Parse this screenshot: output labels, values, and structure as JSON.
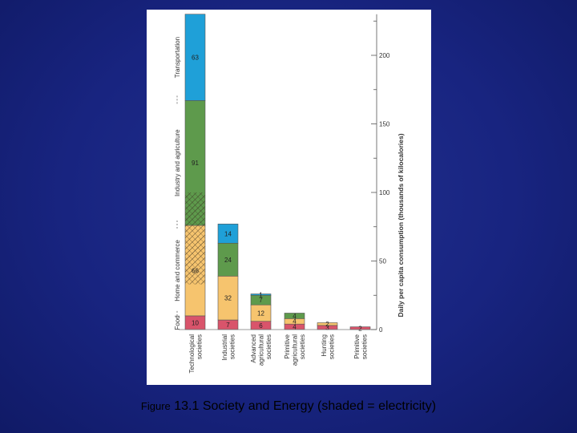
{
  "caption": {
    "prefix": "Figure",
    "main": "13.1 Society and Energy (shaded = electricity)"
  },
  "chart_data": {
    "type": "bar",
    "stacked": true,
    "categories": [
      [
        "Technological",
        "societies"
      ],
      [
        "Industrial",
        "societies"
      ],
      [
        "Advanced",
        "agricultural",
        "societies"
      ],
      [
        "Primitive",
        "agricultural",
        "societies"
      ],
      [
        "Hunting",
        "societies"
      ],
      [
        "Primitive",
        "societies"
      ]
    ],
    "series": [
      {
        "name": "Food",
        "color": "#d9546b",
        "values": [
          10,
          7,
          6,
          4,
          3,
          2
        ]
      },
      {
        "name": "Home and commerce",
        "color": "#f6c46e",
        "values": [
          66,
          32,
          12,
          4,
          2,
          0
        ]
      },
      {
        "name": "Industry and agriculture",
        "color": "#5e9a4c",
        "values": [
          91,
          24,
          7,
          4,
          0,
          0
        ]
      },
      {
        "name": "Transportation",
        "color": "#1fa0d8",
        "values": [
          63,
          14,
          1,
          0,
          0,
          0
        ]
      }
    ],
    "labels": [
      [
        "10",
        "66",
        "91",
        "63"
      ],
      [
        "7",
        "32",
        "24",
        "14"
      ],
      [
        "6",
        "12",
        "7",
        "1"
      ],
      [
        "4",
        "4",
        "4",
        ""
      ],
      [
        "3",
        "2",
        "",
        ""
      ],
      [
        "2",
        "",
        "",
        ""
      ]
    ],
    "electricity_shaded": [
      {
        "bar": 0,
        "from": 33,
        "to": 100
      }
    ],
    "ylabel": "Daily per capita consumption (thousands of kilocalories)",
    "ylim": [
      0,
      230
    ],
    "yticks": [
      0,
      50,
      100,
      150,
      200
    ],
    "grid": false,
    "legend": "left-vertical"
  }
}
